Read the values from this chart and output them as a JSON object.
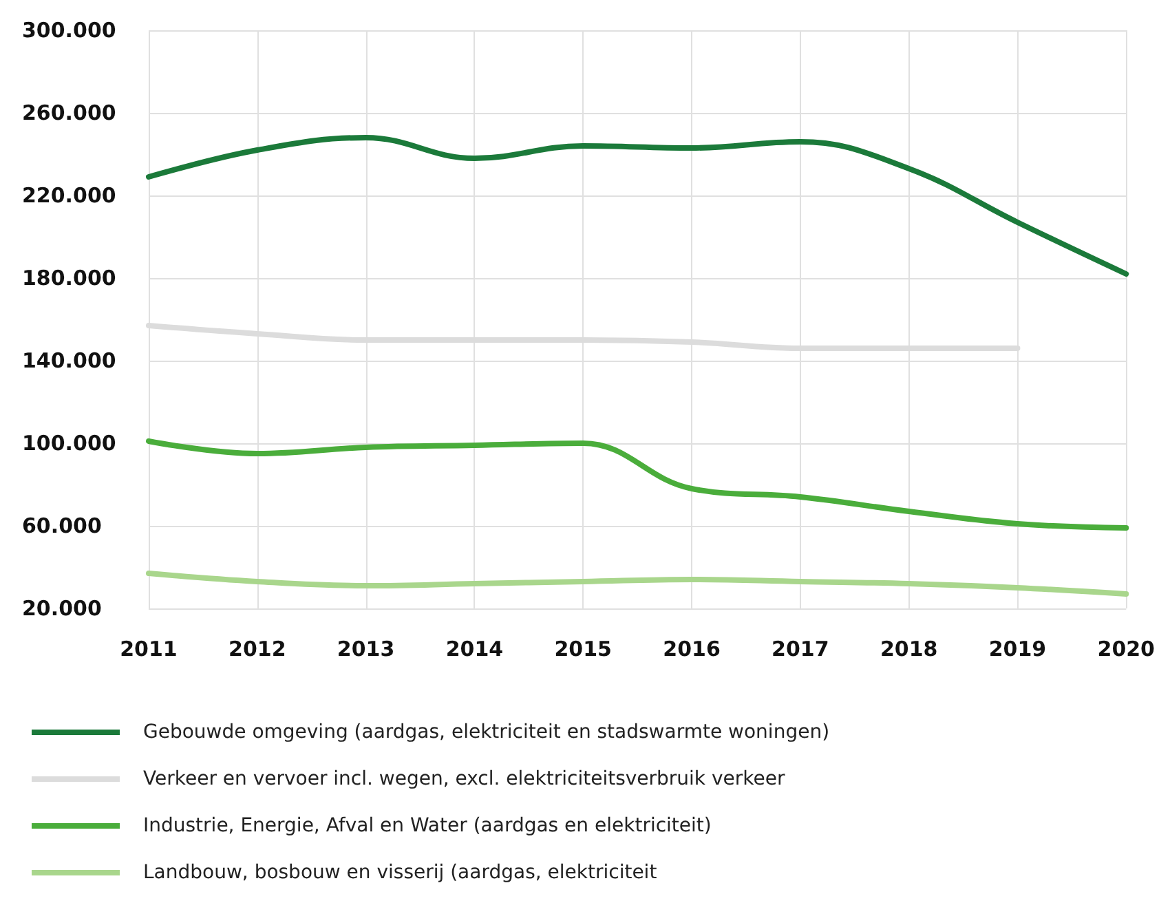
{
  "chart_data": {
    "type": "line",
    "categories": [
      "2011",
      "2012",
      "2013",
      "2014",
      "2015",
      "2016",
      "2017",
      "2018",
      "2019",
      "2020"
    ],
    "series": [
      {
        "name": "Gebouwde omgeving (aardgas, elektriciteit en stadswarmte woningen)",
        "color": "#1b7a3a",
        "values": [
          229000,
          242000,
          248000,
          238000,
          244000,
          243000,
          246000,
          233000,
          207000,
          182000
        ]
      },
      {
        "name": "Verkeer en vervoer incl. wegen, excl. elektriciteitsverbruik verkeer",
        "color": "#dcdcdc",
        "values": [
          157000,
          153000,
          150000,
          150000,
          150000,
          149000,
          146000,
          146000,
          146000,
          null
        ]
      },
      {
        "name": "Industrie, Energie, Afval en Water (aardgas en elektriciteit)",
        "color": "#4aad3b",
        "values": [
          101000,
          95000,
          98000,
          99000,
          100000,
          78000,
          74000,
          67000,
          61000,
          59000
        ]
      },
      {
        "name": "Landbouw, bosbouw en visserij (aardgas, elektriciteit",
        "color": "#a9d68c",
        "values": [
          37000,
          33000,
          31000,
          32000,
          33000,
          34000,
          33000,
          32000,
          30000,
          27000
        ]
      }
    ],
    "ylim": [
      20000,
      300000
    ],
    "yticks": [
      {
        "value": 20000,
        "label": "20.000"
      },
      {
        "value": 60000,
        "label": "60.000"
      },
      {
        "value": 100000,
        "label": "100.000"
      },
      {
        "value": 140000,
        "label": "140.000"
      },
      {
        "value": 180000,
        "label": "180.000"
      },
      {
        "value": 220000,
        "label": "220.000"
      },
      {
        "value": 260000,
        "label": "260.000"
      },
      {
        "value": 300000,
        "label": "300.000"
      }
    ],
    "grid": true,
    "legend": "bottom",
    "marker": "none",
    "line_style": "solid"
  }
}
